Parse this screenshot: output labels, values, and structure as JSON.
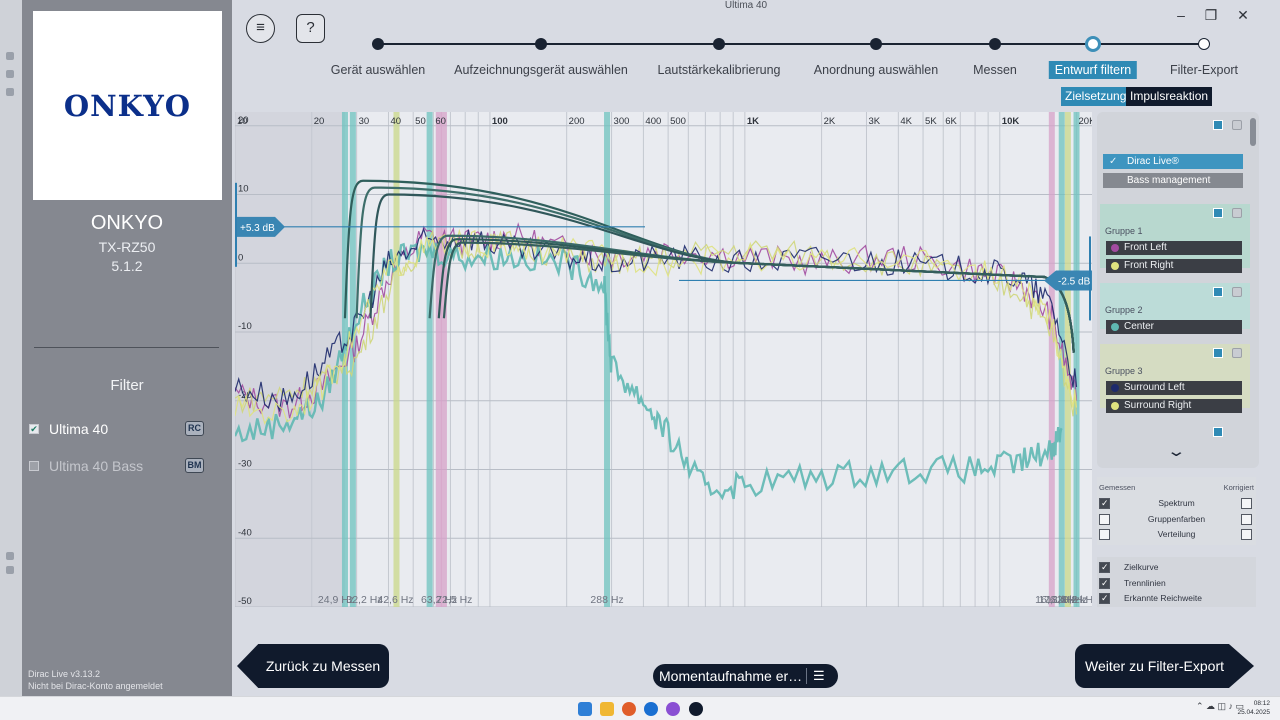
{
  "window": {
    "title": "Ultima 40",
    "min_glyph": "–",
    "max_glyph": "❐",
    "close_glyph": "✕"
  },
  "sidebar": {
    "logo_text": "ONKYO",
    "brand": "ONKYO",
    "model": "TX-RZ50",
    "channels": "5.1.2",
    "filter_heading": "Filter",
    "filters": [
      {
        "label": "Ultima 40",
        "badge": "RC",
        "checked": true
      },
      {
        "label": "Ultima 40 Bass",
        "badge": "BM",
        "checked": false
      }
    ],
    "version": "Dirac Live v3.13.2",
    "login_status": "Nicht bei Dirac-Konto angemeldet"
  },
  "header": {
    "menu_icon": "≡",
    "help_label": "?",
    "steps": [
      {
        "label": "Gerät auswählen",
        "state": "done"
      },
      {
        "label": "Aufzeichnungsgerät auswählen",
        "state": "done"
      },
      {
        "label": "Lautstärkekalibrierung",
        "state": "done"
      },
      {
        "label": "Anordnung auswählen",
        "state": "done"
      },
      {
        "label": "Messen",
        "state": "done"
      },
      {
        "label": "Entwurf filtern",
        "state": "active"
      },
      {
        "label": "Filter-Export",
        "state": "open"
      }
    ],
    "subtabs": [
      "Zielsetzung",
      "Impulsreaktion"
    ]
  },
  "chart_data": {
    "type": "line",
    "x_scale": "log",
    "xlim": [
      10,
      23000
    ],
    "ylim": [
      -50,
      22
    ],
    "x_tick_labels": [
      {
        "x": 10,
        "label": "10"
      },
      {
        "x": 20,
        "label": "20"
      },
      {
        "x": 30,
        "label": "30"
      },
      {
        "x": 40,
        "label": "40"
      },
      {
        "x": 50,
        "label": "50"
      },
      {
        "x": 60,
        "label": "60"
      },
      {
        "x": 100,
        "label": "100"
      },
      {
        "x": 200,
        "label": "200"
      },
      {
        "x": 300,
        "label": "300"
      },
      {
        "x": 400,
        "label": "400"
      },
      {
        "x": 500,
        "label": "500"
      },
      {
        "x": 1000,
        "label": "1K"
      },
      {
        "x": 2000,
        "label": "2K"
      },
      {
        "x": 3000,
        "label": "3K"
      },
      {
        "x": 4000,
        "label": "4K"
      },
      {
        "x": 5000,
        "label": "5K"
      },
      {
        "x": 6000,
        "label": "6K"
      },
      {
        "x": 10000,
        "label": "10K"
      },
      {
        "x": 20000,
        "label": "20K"
      }
    ],
    "y_ticks": [
      20,
      10,
      0,
      -10,
      -20,
      -30,
      -40,
      -50
    ],
    "y_tick_labels": [
      "20",
      "10",
      "0",
      "-10",
      "-20",
      "-30",
      "-40",
      "-50"
    ],
    "limit_handles": [
      {
        "label": "+5.3 dB",
        "db": 5.3,
        "side": "left"
      },
      {
        "label": "-2.5 dB",
        "db": -2.5,
        "side": "right"
      }
    ],
    "crossover_labels": [
      {
        "label": "24,9 Hz",
        "x": 24.9
      },
      {
        "label": "32,2 Hz",
        "x": 32.2
      },
      {
        "label": "42,6 Hz",
        "x": 42.6
      },
      {
        "label": "63,2 Hz",
        "x": 63.2
      },
      {
        "label": "72,5 Hz",
        "x": 72.5
      },
      {
        "label": "288 Hz",
        "x": 288
      },
      {
        "label": "16,6 kHz",
        "x": 16600
      },
      {
        "label": "17,1 kHz",
        "x": 17100
      },
      {
        "label": "18,3 kHz",
        "x": 18300
      },
      {
        "label": "20,2 kHz",
        "x": 20200
      }
    ],
    "marker_bands": [
      {
        "x": 27,
        "color": "#6ec3bf"
      },
      {
        "x": 29,
        "color": "#6ec3bf"
      },
      {
        "x": 43,
        "color": "#c9d889"
      },
      {
        "x": 58,
        "color": "#6ec3bf"
      },
      {
        "x": 63,
        "color": "#d6a2c8"
      },
      {
        "x": 66,
        "color": "#d6a2c8"
      },
      {
        "x": 288,
        "color": "#6ec3bf"
      },
      {
        "x": 16000,
        "color": "#d6a2c8"
      },
      {
        "x": 17500,
        "color": "#6ec3bf"
      },
      {
        "x": 18500,
        "color": "#c9d889"
      },
      {
        "x": 20000,
        "color": "#6ec3bf"
      }
    ],
    "series": [
      {
        "name": "Front Left",
        "color": "#a24ba0",
        "points": [
          [
            10,
            -19
          ],
          [
            16,
            -21
          ],
          [
            22,
            -18
          ],
          [
            30,
            -12
          ],
          [
            40,
            -2
          ],
          [
            55,
            4
          ],
          [
            80,
            3
          ],
          [
            120,
            4
          ],
          [
            200,
            2
          ],
          [
            300,
            1
          ],
          [
            500,
            2
          ],
          [
            1000,
            1
          ],
          [
            2000,
            0
          ],
          [
            4000,
            1
          ],
          [
            8000,
            -1
          ],
          [
            12000,
            -3
          ],
          [
            16000,
            -8
          ],
          [
            20000,
            -20
          ]
        ]
      },
      {
        "name": "Front Right",
        "color": "#cfd67a",
        "points": [
          [
            10,
            -20
          ],
          [
            16,
            -19
          ],
          [
            22,
            -17
          ],
          [
            30,
            -14
          ],
          [
            40,
            -4
          ],
          [
            55,
            3
          ],
          [
            80,
            2
          ],
          [
            120,
            3
          ],
          [
            200,
            1
          ],
          [
            300,
            0
          ],
          [
            500,
            1
          ],
          [
            1000,
            2
          ],
          [
            2000,
            1
          ],
          [
            4000,
            0
          ],
          [
            8000,
            -2
          ],
          [
            12000,
            -4
          ],
          [
            16000,
            -10
          ],
          [
            20000,
            -22
          ]
        ]
      },
      {
        "name": "Center",
        "color": "#5fb8b2",
        "points": [
          [
            10,
            -25
          ],
          [
            16,
            -23
          ],
          [
            22,
            -20
          ],
          [
            30,
            -8
          ],
          [
            40,
            0
          ],
          [
            55,
            2
          ],
          [
            80,
            1
          ],
          [
            120,
            1
          ],
          [
            200,
            0
          ],
          [
            280,
            -3
          ],
          [
            300,
            -15
          ],
          [
            400,
            -20
          ],
          [
            500,
            -25
          ],
          [
            700,
            -33
          ],
          [
            1000,
            -32
          ],
          [
            2000,
            -31
          ],
          [
            4000,
            -30
          ],
          [
            8000,
            -30
          ],
          [
            12000,
            -29
          ],
          [
            16000,
            -27
          ],
          [
            17500,
            -24
          ]
        ]
      },
      {
        "name": "Surround Left",
        "color": "#1d2a6b",
        "points": [
          [
            10,
            -18
          ],
          [
            16,
            -20
          ],
          [
            22,
            -15
          ],
          [
            30,
            -9
          ],
          [
            40,
            0
          ],
          [
            55,
            3
          ],
          [
            80,
            4
          ],
          [
            120,
            2
          ],
          [
            200,
            1
          ],
          [
            300,
            0
          ],
          [
            500,
            1
          ],
          [
            1000,
            0
          ],
          [
            2000,
            1
          ],
          [
            4000,
            0
          ],
          [
            8000,
            -1
          ],
          [
            12000,
            -2
          ],
          [
            16000,
            -6
          ],
          [
            20000,
            -18
          ]
        ]
      },
      {
        "name": "Surround Right",
        "color": "#dfe27f",
        "points": [
          [
            10,
            -21
          ],
          [
            16,
            -22
          ],
          [
            22,
            -18
          ],
          [
            30,
            -10
          ],
          [
            40,
            -1
          ],
          [
            55,
            2
          ],
          [
            80,
            3
          ],
          [
            120,
            2
          ],
          [
            200,
            2
          ],
          [
            300,
            1
          ],
          [
            500,
            0
          ],
          [
            1000,
            1
          ],
          [
            2000,
            0
          ],
          [
            4000,
            1
          ],
          [
            8000,
            -1
          ],
          [
            12000,
            -3
          ],
          [
            16000,
            -9
          ],
          [
            20000,
            -21
          ]
        ]
      }
    ],
    "target_curves": [
      {
        "start": 27,
        "peak": 12,
        "color": "#2f5f5c"
      },
      {
        "start": 30,
        "peak": 11,
        "color": "#3d6e6a"
      },
      {
        "start": 34,
        "peak": 10,
        "color": "#30575a"
      },
      {
        "start": 58,
        "peak": 4,
        "color": "#3a6a68"
      },
      {
        "start": 63,
        "peak": 3.5,
        "color": "#2e5a58"
      },
      {
        "start": 66,
        "peak": 3,
        "color": "#345e5c"
      }
    ]
  },
  "right_panel": {
    "targets": [
      "Dirac Live®",
      "Bass management"
    ],
    "groups": [
      {
        "title": "Gruppe 1",
        "bg": "#b8d8cf",
        "channels": [
          {
            "name": "Front Left",
            "color": "#a24ba0"
          },
          {
            "name": "Front Right",
            "color": "#dfe27f"
          }
        ]
      },
      {
        "title": "Gruppe 2",
        "bg": "#bcdcd8",
        "channels": [
          {
            "name": "Center",
            "color": "#5fb8b2"
          }
        ]
      },
      {
        "title": "Gruppe 3",
        "bg": "#d5dcc2",
        "channels": [
          {
            "name": "Surround Left",
            "color": "#1d2a6b"
          },
          {
            "name": "Surround Right",
            "color": "#dfe27f"
          }
        ]
      }
    ],
    "options_header": {
      "measured": "Gemessen",
      "corrected": "Korrigiert"
    },
    "options": [
      {
        "label": "Spektrum",
        "measured": true,
        "corrected": false
      },
      {
        "label": "Gruppenfarben",
        "measured": false,
        "corrected": false
      },
      {
        "label": "Verteilung",
        "measured": false,
        "corrected": false
      }
    ],
    "display": [
      {
        "label": "Zielkurve",
        "checked": true
      },
      {
        "label": "Trennlinien",
        "checked": true
      },
      {
        "label": "Erkannte Reichweite",
        "checked": true
      }
    ]
  },
  "footer": {
    "back": "Zurück zu Messen",
    "next": "Weiter zu Filter-Export",
    "snapshot": "Momentaufnahme er…",
    "snapshot_icon": "☰"
  },
  "taskbar": {
    "time": "08:12",
    "date": "25.04.2025",
    "tray": "⌃ ☁ ◫ ♪ ▭"
  }
}
